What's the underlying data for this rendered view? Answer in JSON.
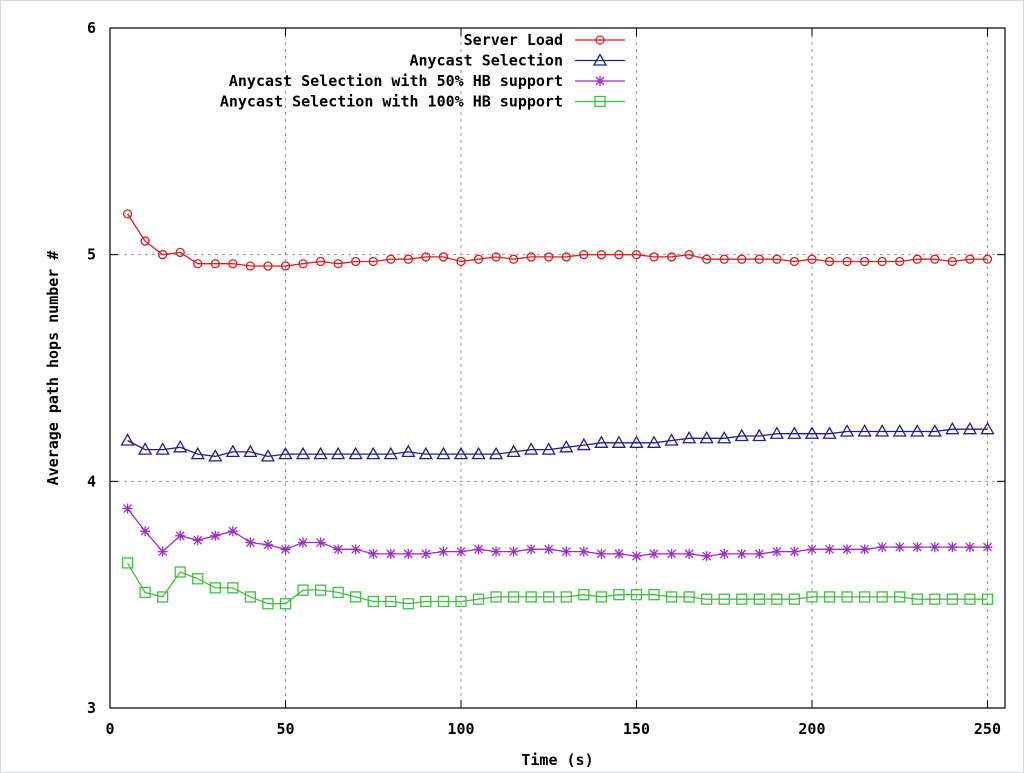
{
  "chart_data": {
    "type": "line",
    "xlabel": "Time (s)",
    "ylabel": "Average path hops number #",
    "xlim": [
      0,
      255
    ],
    "ylim": [
      3,
      6
    ],
    "xticks": [
      0,
      50,
      100,
      150,
      200,
      250
    ],
    "yticks": [
      3,
      4,
      5,
      6
    ],
    "grid": true,
    "legend_position": "top-right",
    "x": [
      5,
      10,
      15,
      20,
      25,
      30,
      35,
      40,
      45,
      50,
      55,
      60,
      65,
      70,
      75,
      80,
      85,
      90,
      95,
      100,
      105,
      110,
      115,
      120,
      125,
      130,
      135,
      140,
      145,
      150,
      155,
      160,
      165,
      170,
      175,
      180,
      185,
      190,
      195,
      200,
      205,
      210,
      215,
      220,
      225,
      230,
      235,
      240,
      245,
      250
    ],
    "series": [
      {
        "name": "Server Load",
        "color": "#d92020",
        "marker": "circle",
        "values": [
          5.18,
          5.06,
          5.0,
          5.01,
          4.96,
          4.96,
          4.96,
          4.95,
          4.95,
          4.95,
          4.96,
          4.97,
          4.96,
          4.97,
          4.97,
          4.98,
          4.98,
          4.99,
          4.99,
          4.97,
          4.98,
          4.99,
          4.98,
          4.99,
          4.99,
          4.99,
          5.0,
          5.0,
          5.0,
          5.0,
          4.99,
          4.99,
          5.0,
          4.98,
          4.98,
          4.98,
          4.98,
          4.98,
          4.97,
          4.98,
          4.97,
          4.97,
          4.97,
          4.97,
          4.97,
          4.98,
          4.98,
          4.97,
          4.98,
          4.98
        ]
      },
      {
        "name": "Anycast Selection",
        "color": "#20208c",
        "marker": "triangle",
        "values": [
          4.18,
          4.14,
          4.14,
          4.15,
          4.12,
          4.11,
          4.13,
          4.13,
          4.11,
          4.12,
          4.12,
          4.12,
          4.12,
          4.12,
          4.12,
          4.12,
          4.13,
          4.12,
          4.12,
          4.12,
          4.12,
          4.12,
          4.13,
          4.14,
          4.14,
          4.15,
          4.16,
          4.17,
          4.17,
          4.17,
          4.17,
          4.18,
          4.19,
          4.19,
          4.19,
          4.2,
          4.2,
          4.21,
          4.21,
          4.21,
          4.21,
          4.22,
          4.22,
          4.22,
          4.22,
          4.22,
          4.22,
          4.23,
          4.23,
          4.23
        ]
      },
      {
        "name": "Anycast Selection with 50% HB support",
        "color": "#9b30c8",
        "marker": "star",
        "values": [
          3.88,
          3.78,
          3.69,
          3.76,
          3.74,
          3.76,
          3.78,
          3.73,
          3.72,
          3.7,
          3.73,
          3.73,
          3.7,
          3.7,
          3.68,
          3.68,
          3.68,
          3.68,
          3.69,
          3.69,
          3.7,
          3.69,
          3.69,
          3.7,
          3.7,
          3.69,
          3.69,
          3.68,
          3.68,
          3.67,
          3.68,
          3.68,
          3.68,
          3.67,
          3.68,
          3.68,
          3.68,
          3.69,
          3.69,
          3.7,
          3.7,
          3.7,
          3.7,
          3.71,
          3.71,
          3.71,
          3.71,
          3.71,
          3.71,
          3.71
        ]
      },
      {
        "name": "Anycast Selection with 100% HB support",
        "color": "#40c040",
        "marker": "square",
        "values": [
          3.64,
          3.51,
          3.49,
          3.6,
          3.57,
          3.53,
          3.53,
          3.49,
          3.46,
          3.46,
          3.52,
          3.52,
          3.51,
          3.49,
          3.47,
          3.47,
          3.46,
          3.47,
          3.47,
          3.47,
          3.48,
          3.49,
          3.49,
          3.49,
          3.49,
          3.49,
          3.5,
          3.49,
          3.5,
          3.5,
          3.5,
          3.49,
          3.49,
          3.48,
          3.48,
          3.48,
          3.48,
          3.48,
          3.48,
          3.49,
          3.49,
          3.49,
          3.49,
          3.49,
          3.49,
          3.48,
          3.48,
          3.48,
          3.48,
          3.48
        ]
      }
    ]
  }
}
